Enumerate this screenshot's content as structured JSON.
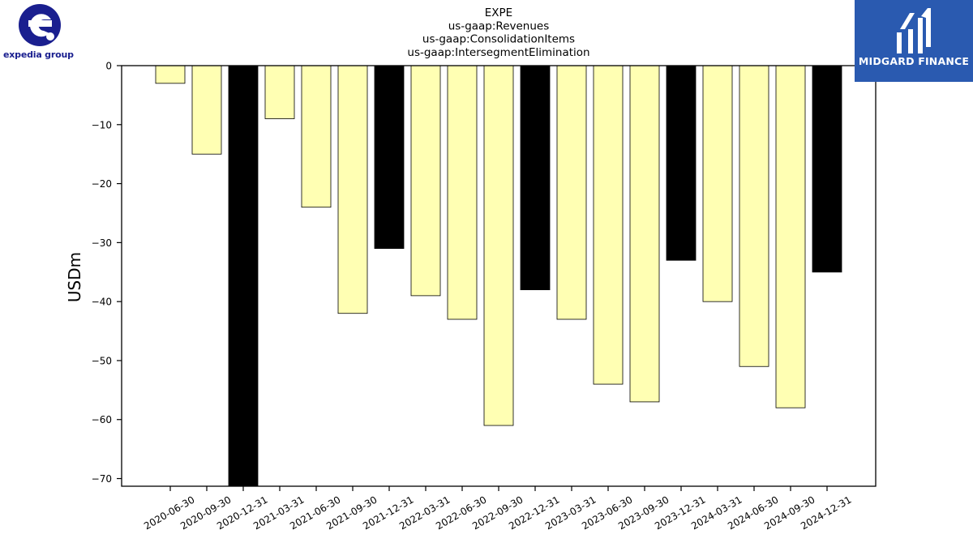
{
  "logos": {
    "left_text": "expedia group",
    "right_text": "MIDGARD FINANCE"
  },
  "colors": {
    "bar_light": "#ffffb3",
    "bar_dark": "#000000",
    "logo_blue": "#2a5ab0",
    "expedia_navy": "#1a1f8f"
  },
  "chart_data": {
    "type": "bar",
    "title": "EXPE\nus-gaap:Revenues\nus-gaap:ConsolidationItems\nus-gaap:IntersegmentElimination",
    "title_lines": [
      "EXPE",
      "us-gaap:Revenues",
      "us-gaap:ConsolidationItems",
      "us-gaap:IntersegmentElimination"
    ],
    "xlabel": "",
    "ylabel": "USDm",
    "ylim": [
      -71.3,
      0
    ],
    "yticks": [
      0,
      -10,
      -20,
      -30,
      -40,
      -50,
      -60,
      -70
    ],
    "ytick_labels": [
      "0",
      "−10",
      "−20",
      "−30",
      "−40",
      "−50",
      "−60",
      "−70"
    ],
    "categories": [
      "2020-06-30",
      "2020-09-30",
      "2020-12-31",
      "2021-03-31",
      "2021-06-30",
      "2021-09-30",
      "2021-12-31",
      "2022-03-31",
      "2022-06-30",
      "2022-09-30",
      "2022-12-31",
      "2023-03-31",
      "2023-06-30",
      "2023-09-30",
      "2023-12-31",
      "2024-03-31",
      "2024-06-30",
      "2024-09-30",
      "2024-12-31"
    ],
    "values": [
      -3,
      -15,
      -72,
      -9,
      -24,
      -42,
      -31,
      -39,
      -43,
      -61,
      -38,
      -43,
      -54,
      -57,
      -33,
      -40,
      -51,
      -58,
      -35
    ],
    "bar_colors": [
      "light",
      "light",
      "dark",
      "light",
      "light",
      "light",
      "dark",
      "light",
      "light",
      "light",
      "dark",
      "light",
      "light",
      "light",
      "dark",
      "light",
      "light",
      "light",
      "dark"
    ],
    "grid": false,
    "legend": "none"
  }
}
